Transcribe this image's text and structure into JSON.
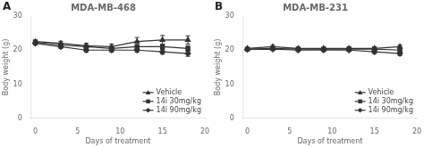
{
  "chart_data": [
    {
      "type": "line",
      "title": "MDA-MB-468",
      "annotations": [
        "A"
      ],
      "x_label": "Days of treatment",
      "y_label": "Body weight (g)",
      "x": [
        0,
        3,
        6,
        9,
        12,
        15,
        18
      ],
      "series": [
        {
          "name": "Vehicle",
          "color": "#333333",
          "marker": "triangle",
          "values": [
            22.5,
            22.0,
            21.3,
            21.0,
            22.5,
            23.0,
            23.0
          ],
          "yerr": [
            0.5,
            0.6,
            0.7,
            0.8,
            1.2,
            1.3,
            1.2
          ]
        },
        {
          "name": "14i 30mg/kg",
          "color": "#333333",
          "marker": "square",
          "values": [
            22.3,
            21.5,
            21.0,
            20.5,
            21.0,
            21.0,
            20.5
          ],
          "yerr": [
            0.5,
            0.5,
            0.5,
            0.6,
            0.6,
            0.7,
            0.8
          ]
        },
        {
          "name": "14i 90mg/kg",
          "color": "#333333",
          "marker": "diamond",
          "values": [
            22.0,
            21.0,
            20.0,
            20.0,
            20.0,
            19.5,
            19.0
          ],
          "yerr": [
            0.5,
            0.5,
            0.6,
            0.6,
            0.6,
            0.7,
            0.8
          ]
        }
      ],
      "xlim": [
        -0.5,
        20
      ],
      "xticks": [
        0,
        5,
        10,
        15,
        20
      ],
      "ylim": [
        0,
        30
      ],
      "yticks": [
        0,
        10,
        20,
        30
      ],
      "grid": false,
      "legend": "lower right"
    },
    {
      "type": "line",
      "title": "MDA-MB-231",
      "annotations": [
        "B"
      ],
      "x_label": "Days of treatment",
      "y_label": "Body weight (g)",
      "x": [
        0,
        3,
        6,
        9,
        12,
        15,
        18
      ],
      "series": [
        {
          "name": "Vehicle",
          "color": "#333333",
          "marker": "triangle",
          "values": [
            20.5,
            21.0,
            20.5,
            20.5,
            20.5,
            20.5,
            21.0
          ],
          "yerr": [
            0.3,
            0.4,
            0.4,
            0.4,
            0.5,
            0.5,
            0.5
          ]
        },
        {
          "name": "14i 30mg/kg",
          "color": "#333333",
          "marker": "square",
          "values": [
            20.3,
            20.5,
            20.3,
            20.3,
            20.3,
            20.3,
            20.0
          ],
          "yerr": [
            0.3,
            0.4,
            0.4,
            0.4,
            0.4,
            0.5,
            0.5
          ]
        },
        {
          "name": "14i 90mg/kg",
          "color": "#333333",
          "marker": "diamond",
          "values": [
            20.2,
            20.3,
            20.0,
            20.0,
            20.0,
            19.5,
            19.0
          ],
          "yerr": [
            0.3,
            0.4,
            0.4,
            0.4,
            0.4,
            0.5,
            0.6
          ]
        }
      ],
      "xlim": [
        -0.5,
        20
      ],
      "xticks": [
        0,
        5,
        10,
        15,
        20
      ],
      "ylim": [
        0,
        30
      ],
      "yticks": [
        0,
        10,
        20,
        30
      ],
      "grid": false,
      "legend": "lower right"
    }
  ]
}
